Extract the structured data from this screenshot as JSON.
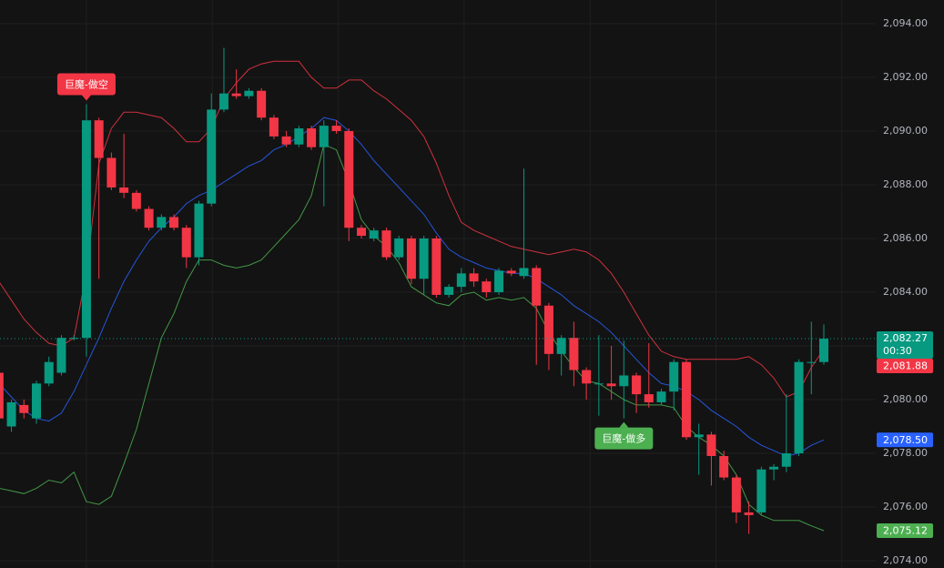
{
  "chart_data": {
    "type": "candlestick",
    "up_color": "#089981",
    "down_color": "#f23645",
    "ylim": [
      2073.73,
      2094.88
    ],
    "yticks": [
      {
        "value": 2074,
        "label": "2,074.00"
      },
      {
        "value": 2076,
        "label": "2,076.00"
      },
      {
        "value": 2078,
        "label": "2,078.00"
      },
      {
        "value": 2080,
        "label": "2,080.00"
      },
      {
        "value": 2082,
        "label": "2,082.00"
      },
      {
        "value": 2084,
        "label": "2,084.00"
      },
      {
        "value": 2086,
        "label": "2,086.00"
      },
      {
        "value": 2088,
        "label": "2,088.00"
      },
      {
        "value": 2090,
        "label": "2,090.00"
      },
      {
        "value": 2092,
        "label": "2,092.00"
      },
      {
        "value": 2094,
        "label": "2,094.00"
      }
    ],
    "grid": true,
    "open": [
      2081.0,
      2079.0,
      2079.8,
      2079.3,
      2080.6,
      2081.0,
      2082.3,
      2082.3,
      2090.4,
      2089.0,
      2087.9,
      2087.7,
      2087.1,
      2086.4,
      2086.8,
      2086.4,
      2085.3,
      2087.3,
      2090.8,
      2091.4,
      2091.3,
      2091.5,
      2090.5,
      2089.8,
      2089.5,
      2090.1,
      2089.4,
      2090.2,
      2090.0,
      2086.4,
      2086.0,
      2086.3,
      2085.3,
      2086.0,
      2084.5,
      2086.0,
      2083.9,
      2084.2,
      2084.7,
      2084.4,
      2084.0,
      2084.8,
      2084.6,
      2084.9,
      2083.5,
      2081.7,
      2082.3,
      2081.1,
      2080.6,
      2080.6,
      2080.5,
      2080.9,
      2080.2,
      2079.9,
      2080.3,
      2081.4,
      2078.6,
      2078.7,
      2077.9,
      2077.1,
      2075.8,
      2075.8,
      2077.4,
      2077.5,
      2078.0,
      2081.4,
      2081.4
    ],
    "high": [
      2081.5,
      2080.0,
      2080.0,
      2080.7,
      2081.6,
      2082.4,
      2082.4,
      2091.0,
      2090.5,
      2089.2,
      2089.9,
      2087.8,
      2087.2,
      2086.9,
      2086.9,
      2086.5,
      2087.4,
      2091.4,
      2093.1,
      2092.3,
      2091.6,
      2091.6,
      2090.6,
      2090.0,
      2090.2,
      2090.2,
      2090.4,
      2090.4,
      2090.1,
      2086.5,
      2086.4,
      2086.4,
      2086.1,
      2086.1,
      2086.1,
      2086.1,
      2084.3,
      2084.9,
      2084.9,
      2084.5,
      2084.9,
      2084.9,
      2088.6,
      2085.0,
      2083.6,
      2082.4,
      2082.9,
      2081.2,
      2082.4,
      2082.0,
      2082.2,
      2081.0,
      2082.1,
      2080.4,
      2081.5,
      2081.5,
      2079.1,
      2078.8,
      2078.1,
      2077.2,
      2076.2,
      2077.5,
      2077.6,
      2080.2,
      2081.5,
      2082.9,
      2082.8
    ],
    "low": [
      2079.0,
      2078.8,
      2079.3,
      2079.1,
      2080.5,
      2080.9,
      2082.2,
      2081.6,
      2084.5,
      2087.8,
      2087.5,
      2087.0,
      2086.3,
      2086.3,
      2086.3,
      2084.9,
      2085.0,
      2087.2,
      2090.7,
      2091.2,
      2091.2,
      2090.4,
      2089.7,
      2089.4,
      2089.4,
      2089.3,
      2087.2,
      2089.9,
      2085.9,
      2086.0,
      2085.9,
      2085.2,
      2085.2,
      2084.3,
      2083.9,
      2083.8,
      2083.8,
      2084.0,
      2084.2,
      2083.8,
      2083.9,
      2084.6,
      2084.5,
      2081.3,
      2081.1,
      2080.9,
      2080.5,
      2080.0,
      2079.4,
      2080.0,
      2079.3,
      2079.5,
      2079.7,
      2079.8,
      2079.6,
      2078.5,
      2077.2,
      2076.8,
      2077.0,
      2075.4,
      2075.0,
      2075.7,
      2077.0,
      2077.3,
      2077.9,
      2080.2,
      2081.3
    ],
    "close": [
      2079.3,
      2079.9,
      2079.5,
      2080.6,
      2081.4,
      2082.3,
      2082.3,
      2090.4,
      2089.0,
      2087.9,
      2087.7,
      2087.1,
      2086.4,
      2086.8,
      2086.4,
      2085.3,
      2087.3,
      2090.8,
      2091.4,
      2091.3,
      2091.5,
      2090.5,
      2089.8,
      2089.5,
      2090.1,
      2089.4,
      2090.2,
      2090.0,
      2086.4,
      2086.1,
      2086.3,
      2085.3,
      2086.0,
      2084.5,
      2086.0,
      2083.9,
      2084.2,
      2084.7,
      2084.4,
      2084.0,
      2084.8,
      2084.7,
      2084.9,
      2083.5,
      2081.7,
      2082.3,
      2081.1,
      2080.6,
      2080.6,
      2080.5,
      2080.9,
      2080.2,
      2079.9,
      2080.3,
      2081.4,
      2078.6,
      2078.7,
      2077.9,
      2077.1,
      2075.8,
      2075.7,
      2077.4,
      2077.5,
      2078.0,
      2081.4,
      2081.4,
      2082.27
    ],
    "last_price_label": "2,082.27",
    "countdown": "00:30",
    "lines": [
      {
        "color": "#f23645",
        "last_label": "2,081.88",
        "values": [
          2084.4,
          2083.7,
          2083.0,
          2082.5,
          2082.1,
          2082.0,
          2082.3,
          2084.7,
          2088.8,
          2090.1,
          2090.7,
          2090.7,
          2090.6,
          2090.5,
          2090.1,
          2089.6,
          2089.6,
          2090.1,
          2091.2,
          2091.8,
          2092.3,
          2092.5,
          2092.6,
          2092.6,
          2092.6,
          2092.0,
          2091.6,
          2091.6,
          2091.9,
          2091.9,
          2091.5,
          2091.2,
          2090.8,
          2090.4,
          2089.8,
          2088.8,
          2087.6,
          2086.6,
          2086.3,
          2086.1,
          2085.9,
          2085.7,
          2085.6,
          2085.5,
          2085.4,
          2085.5,
          2085.6,
          2085.5,
          2085.2,
          2084.7,
          2084.0,
          2083.2,
          2082.4,
          2081.8,
          2081.6,
          2081.5,
          2081.5,
          2081.5,
          2081.5,
          2081.5,
          2081.6,
          2081.3,
          2080.8,
          2080.1,
          2080.3,
          2081.2,
          2081.88
        ]
      },
      {
        "color": "#2962ff",
        "last_label": "2,078.50",
        "values": [
          2080.6,
          2080.1,
          2079.6,
          2079.3,
          2079.2,
          2079.5,
          2080.3,
          2081.3,
          2082.3,
          2083.4,
          2084.4,
          2085.2,
          2085.9,
          2086.4,
          2086.8,
          2087.3,
          2087.6,
          2087.8,
          2088.1,
          2088.4,
          2088.7,
          2088.9,
          2089.3,
          2089.5,
          2089.8,
          2090.1,
          2090.5,
          2090.4,
          2090.0,
          2089.5,
          2088.9,
          2088.4,
          2087.9,
          2087.4,
          2086.9,
          2086.2,
          2085.6,
          2085.3,
          2085.1,
          2084.9,
          2084.8,
          2084.7,
          2084.7,
          2084.5,
          2084.2,
          2083.9,
          2083.5,
          2083.2,
          2082.9,
          2082.5,
          2082.0,
          2081.5,
          2081.0,
          2080.6,
          2080.5,
          2080.3,
          2080.0,
          2079.6,
          2079.3,
          2079.0,
          2078.6,
          2078.3,
          2078.1,
          2077.9,
          2078.0,
          2078.3,
          2078.5
        ]
      },
      {
        "color": "#4caf50",
        "last_label": "2,075.12",
        "values": [
          2076.7,
          2076.6,
          2076.5,
          2076.7,
          2077.0,
          2076.9,
          2077.3,
          2076.2,
          2076.1,
          2076.4,
          2077.6,
          2078.9,
          2080.6,
          2082.3,
          2083.2,
          2084.4,
          2085.2,
          2085.2,
          2085.0,
          2084.9,
          2085.0,
          2085.2,
          2085.7,
          2086.2,
          2086.7,
          2087.6,
          2089.5,
          2089.3,
          2088.1,
          2086.7,
          2086.1,
          2085.7,
          2085.1,
          2084.2,
          2083.9,
          2083.6,
          2083.5,
          2083.9,
          2084.0,
          2083.7,
          2083.8,
          2083.7,
          2083.8,
          2083.4,
          2082.5,
          2081.8,
          2081.2,
          2080.7,
          2080.6,
          2080.3,
          2080.0,
          2079.8,
          2079.8,
          2079.8,
          2079.7,
          2079.0,
          2078.6,
          2078.3,
          2077.9,
          2077.2,
          2076.1,
          2075.7,
          2075.5,
          2075.5,
          2075.5,
          2075.3,
          2075.12
        ]
      }
    ],
    "annotations": [
      {
        "text": "巨魔-做空",
        "index": 7,
        "position": "above",
        "color": "#f23645"
      },
      {
        "text": "巨魔-做多",
        "index": 50,
        "position": "below",
        "color": "#4caf50"
      }
    ]
  }
}
